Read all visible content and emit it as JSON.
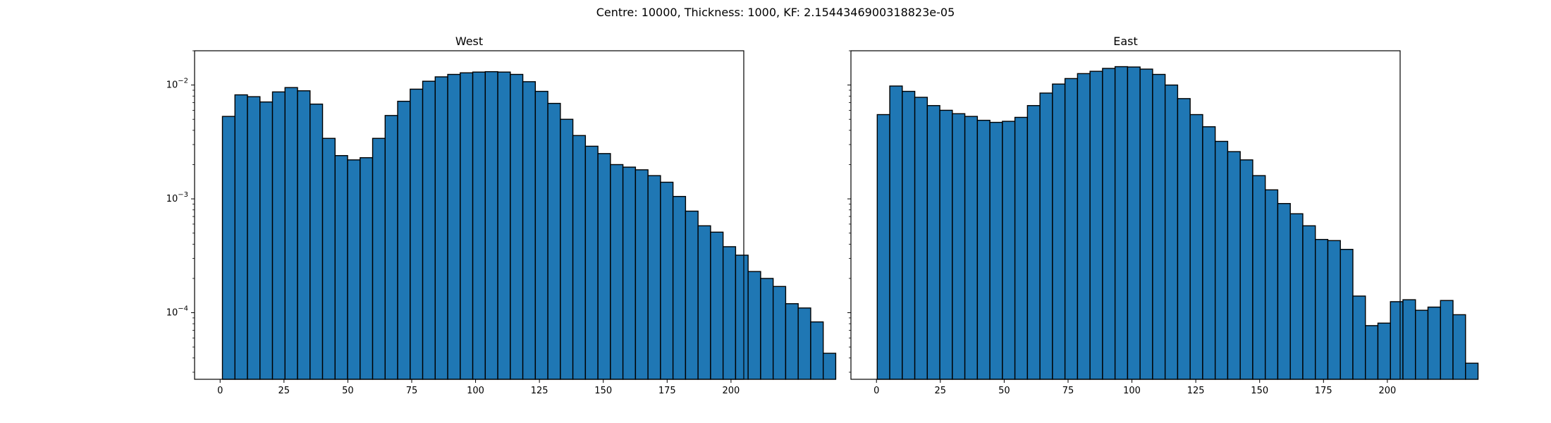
{
  "figure": {
    "suptitle": "Centre: 10000, Thickness: 1000, KF: 2.1544346900318823e-05"
  },
  "colors": {
    "bar_fill": "#1f77b4",
    "bar_edge": "#000000"
  },
  "chart_data": [
    {
      "type": "bar",
      "title": "West",
      "xlabel": "",
      "ylabel": "",
      "yscale": "log",
      "xlim": [
        -10,
        205
      ],
      "ylim": [
        2.6e-05,
        0.02
      ],
      "grid": false,
      "xticks": [
        0,
        25,
        50,
        75,
        100,
        125,
        150,
        175,
        200
      ],
      "yticks": [
        {
          "value": 0.0001,
          "label": "10^-4"
        },
        {
          "value": 0.001,
          "label": "10^-3"
        },
        {
          "value": 0.01,
          "label": "10^-2"
        }
      ],
      "bin_width": 4.9,
      "bin_start": 0.9,
      "values": [
        0.0053,
        0.0082,
        0.0079,
        0.0071,
        0.0087,
        0.0095,
        0.0089,
        0.0068,
        0.0034,
        0.0024,
        0.0022,
        0.0023,
        0.0034,
        0.0054,
        0.0072,
        0.0092,
        0.0108,
        0.0118,
        0.0124,
        0.0128,
        0.013,
        0.0131,
        0.013,
        0.0124,
        0.0107,
        0.0088,
        0.0069,
        0.005,
        0.0036,
        0.0029,
        0.0025,
        0.002,
        0.0019,
        0.0018,
        0.0016,
        0.0014,
        0.00105,
        0.00078,
        0.00058,
        0.00051,
        0.00038,
        0.00032,
        0.00023,
        0.0002,
        0.00017,
        0.00012,
        0.00011,
        8.3e-05,
        4.4e-05
      ]
    },
    {
      "type": "bar",
      "title": "East",
      "xlabel": "",
      "ylabel": "",
      "yscale": "log",
      "xlim": [
        -10,
        205
      ],
      "ylim": [
        2.6e-05,
        0.02
      ],
      "grid": false,
      "xticks": [
        0,
        25,
        50,
        75,
        100,
        125,
        150,
        175,
        200
      ],
      "yticks": [],
      "bin_width": 4.9,
      "bin_start": 0.3,
      "values": [
        0.0055,
        0.0098,
        0.0088,
        0.0078,
        0.0066,
        0.006,
        0.0056,
        0.0053,
        0.0049,
        0.0047,
        0.0048,
        0.0052,
        0.0066,
        0.0085,
        0.0102,
        0.0114,
        0.0126,
        0.0132,
        0.014,
        0.0145,
        0.0144,
        0.0138,
        0.0124,
        0.01,
        0.0076,
        0.0055,
        0.0043,
        0.0032,
        0.0026,
        0.0022,
        0.0016,
        0.0012,
        0.00091,
        0.00074,
        0.00058,
        0.00044,
        0.00043,
        0.00036,
        0.00014,
        7.7e-05,
        8.1e-05,
        0.000125,
        0.00013,
        0.000105,
        0.000112,
        0.000128,
        9.6e-05,
        3.6e-05
      ]
    }
  ]
}
